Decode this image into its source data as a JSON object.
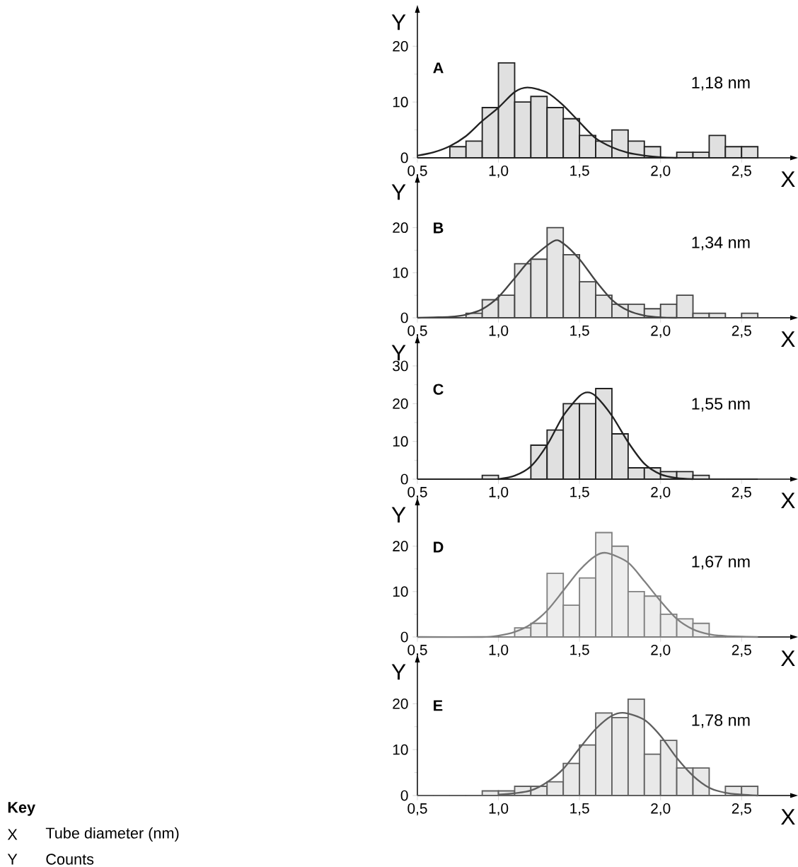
{
  "chart_data": [
    {
      "type": "histogram",
      "xlabel": "X",
      "ylabel": "Y",
      "annotations": [
        "A",
        "1,18 nm"
      ],
      "xlim": [
        0.5,
        2.8
      ],
      "ylim": [
        0,
        26
      ],
      "xticks": [
        {
          "value": 0.5,
          "label": "0,5"
        },
        {
          "value": 1.0,
          "label": "1,0"
        },
        {
          "value": 1.5,
          "label": "1,5"
        },
        {
          "value": 2.0,
          "label": "2,0"
        },
        {
          "value": 2.5,
          "label": "2,5"
        }
      ],
      "yticks": [
        0,
        10,
        20
      ],
      "bins": [
        0.5,
        0.6,
        0.7,
        0.8,
        0.9,
        1.0,
        1.1,
        1.2,
        1.3,
        1.4,
        1.5,
        1.6,
        1.7,
        1.8,
        1.9,
        2.0,
        2.1,
        2.2,
        2.3,
        2.4,
        2.5,
        2.6
      ],
      "series": [
        {
          "color": "#222222",
          "values": [
            0,
            0,
            2,
            3,
            9,
            17,
            10,
            11,
            9,
            7,
            4,
            3,
            5,
            3,
            2,
            0,
            1,
            1,
            4,
            2,
            2
          ]
        },
        {
          "type": "line",
          "color": "#222222",
          "x": [
            0.5,
            0.6,
            0.7,
            0.8,
            0.9,
            1.0,
            1.1,
            1.18,
            1.3,
            1.4,
            1.5,
            1.6,
            1.7,
            1.8,
            1.9,
            2.0,
            2.1
          ],
          "values": [
            0.4,
            1.0,
            2.1,
            3.9,
            6.6,
            9.0,
            11.8,
            12.6,
            11.7,
            9.4,
            6.4,
            3.5,
            1.9,
            0.9,
            0.4,
            0.1,
            0
          ]
        }
      ]
    },
    {
      "type": "histogram",
      "xlabel": "X",
      "ylabel": "Y",
      "annotations": [
        "B",
        "1,34 nm"
      ],
      "xlim": [
        0.5,
        2.8
      ],
      "ylim": [
        0,
        30
      ],
      "xticks": [
        {
          "value": 0.5,
          "label": "0,5"
        },
        {
          "value": 1.0,
          "label": "1,0"
        },
        {
          "value": 1.5,
          "label": "1,5"
        },
        {
          "value": 2.0,
          "label": "2,0"
        },
        {
          "value": 2.5,
          "label": "2,5"
        }
      ],
      "yticks": [
        0,
        10,
        20
      ],
      "bins": [
        0.5,
        0.6,
        0.7,
        0.8,
        0.9,
        1.0,
        1.1,
        1.2,
        1.3,
        1.4,
        1.5,
        1.6,
        1.7,
        1.8,
        1.9,
        2.0,
        2.1,
        2.2,
        2.3,
        2.4,
        2.5,
        2.6
      ],
      "series": [
        {
          "color": "#444444",
          "values": [
            0,
            0,
            0,
            1,
            4,
            5,
            12,
            13,
            20,
            14,
            8,
            5,
            3,
            3,
            2,
            3,
            5,
            1,
            1,
            0,
            1
          ]
        },
        {
          "type": "line",
          "color": "#444444",
          "x": [
            0.5,
            0.6,
            0.7,
            0.8,
            0.9,
            1.0,
            1.1,
            1.2,
            1.34,
            1.4,
            1.5,
            1.6,
            1.7,
            1.8,
            1.9,
            2.0,
            2.1
          ],
          "values": [
            0,
            0.1,
            0.2,
            0.7,
            1.9,
            4.6,
            8.8,
            13,
            17,
            16.5,
            13,
            8.2,
            4,
            1.6,
            0.5,
            0.1,
            0
          ]
        }
      ]
    },
    {
      "type": "histogram",
      "xlabel": "X",
      "ylabel": "Y",
      "annotations": [
        "C",
        "1,55 nm"
      ],
      "xlim": [
        0.5,
        2.8
      ],
      "ylim": [
        0,
        36
      ],
      "xticks": [
        {
          "value": 0.5,
          "label": "0,5"
        },
        {
          "value": 1.0,
          "label": "1,0"
        },
        {
          "value": 1.5,
          "label": "1,5"
        },
        {
          "value": 2.0,
          "label": "2,0"
        },
        {
          "value": 2.5,
          "label": "2,5"
        }
      ],
      "yticks": [
        0,
        10,
        20,
        30
      ],
      "bins": [
        0.5,
        0.6,
        0.7,
        0.8,
        0.9,
        1.0,
        1.1,
        1.2,
        1.3,
        1.4,
        1.5,
        1.6,
        1.7,
        1.8,
        1.9,
        2.0,
        2.1,
        2.2,
        2.3,
        2.4,
        2.5,
        2.6
      ],
      "series": [
        {
          "color": "#222222",
          "values": [
            0,
            0,
            0,
            0,
            1,
            0,
            0,
            9,
            13,
            20,
            20,
            24,
            12,
            3,
            3,
            2,
            2,
            1,
            0,
            0,
            0
          ]
        },
        {
          "type": "line",
          "color": "#222222",
          "x": [
            1.0,
            1.1,
            1.2,
            1.3,
            1.4,
            1.5,
            1.55,
            1.6,
            1.7,
            1.8,
            1.9,
            2.0,
            2.1,
            2.2
          ],
          "values": [
            0,
            0.9,
            3.4,
            9,
            16.8,
            22,
            23,
            22,
            16.8,
            9.8,
            4.1,
            1.3,
            0.3,
            0
          ]
        }
      ]
    },
    {
      "type": "histogram",
      "xlabel": "X",
      "ylabel": "Y",
      "annotations": [
        "D",
        "1,67 nm"
      ],
      "xlim": [
        0.5,
        2.8
      ],
      "ylim": [
        0,
        29
      ],
      "xticks": [
        {
          "value": 0.5,
          "label": "0,5"
        },
        {
          "value": 1.0,
          "label": "1,0"
        },
        {
          "value": 1.5,
          "label": "1,5"
        },
        {
          "value": 2.0,
          "label": "2,0"
        },
        {
          "value": 2.5,
          "label": "2,5"
        }
      ],
      "yticks": [
        0,
        10,
        20
      ],
      "bins": [
        0.5,
        0.6,
        0.7,
        0.8,
        0.9,
        1.0,
        1.1,
        1.2,
        1.3,
        1.4,
        1.5,
        1.6,
        1.7,
        1.8,
        1.9,
        2.0,
        2.1,
        2.2,
        2.3,
        2.4,
        2.5,
        2.6
      ],
      "series": [
        {
          "color": "#808080",
          "values": [
            0,
            0,
            0,
            0,
            0,
            0,
            2,
            3,
            14,
            7,
            13,
            23,
            20,
            10,
            9,
            5,
            4,
            3,
            0,
            0,
            0
          ]
        },
        {
          "type": "line",
          "color": "#808080",
          "x": [
            0.5,
            0.9,
            1.0,
            1.1,
            1.2,
            1.3,
            1.4,
            1.5,
            1.6,
            1.67,
            1.8,
            1.9,
            2.0,
            2.1,
            2.2,
            2.3,
            2.4,
            2.6
          ],
          "values": [
            0,
            0,
            0.3,
            1.1,
            2.8,
            5.8,
            10.2,
            14.7,
            17.9,
            18.5,
            16.4,
            12.3,
            7.9,
            4,
            1.7,
            0.6,
            0.2,
            0
          ]
        }
      ]
    },
    {
      "type": "histogram",
      "xlabel": "X",
      "ylabel": "Y",
      "annotations": [
        "E",
        "1,78 nm",
        "Key",
        "X",
        "Tube diameter (nm)",
        "Y",
        "Counts"
      ],
      "xlim": [
        0.5,
        2.8
      ],
      "ylim": [
        0,
        29
      ],
      "xticks": [
        {
          "value": 0.5,
          "label": "0,5"
        },
        {
          "value": 1.0,
          "label": "1,0"
        },
        {
          "value": 1.5,
          "label": "1,5"
        },
        {
          "value": 2.0,
          "label": "2,0"
        },
        {
          "value": 2.5,
          "label": "2,5"
        }
      ],
      "yticks": [
        0,
        10,
        20
      ],
      "bins": [
        0.5,
        0.6,
        0.7,
        0.8,
        0.9,
        1.0,
        1.1,
        1.2,
        1.3,
        1.4,
        1.5,
        1.6,
        1.7,
        1.8,
        1.9,
        2.0,
        2.1,
        2.2,
        2.3,
        2.4,
        2.5,
        2.6
      ],
      "series": [
        {
          "color": "#606060",
          "values": [
            0,
            0,
            0,
            0,
            1,
            1,
            2,
            2,
            3,
            7,
            11,
            18,
            17,
            21,
            9,
            12,
            6,
            6,
            0,
            2,
            2
          ]
        },
        {
          "type": "line",
          "color": "#606060",
          "x": [
            1.0,
            1.1,
            1.2,
            1.3,
            1.4,
            1.5,
            1.6,
            1.7,
            1.78,
            1.9,
            2.0,
            2.1,
            2.2,
            2.3,
            2.4,
            2.5,
            2.6
          ],
          "values": [
            0.2,
            0.5,
            1.1,
            2.9,
            5.8,
            10.3,
            14.5,
            17.4,
            18,
            16.5,
            13,
            8.2,
            4.3,
            1.7,
            0.6,
            0.2,
            0
          ]
        }
      ]
    }
  ]
}
